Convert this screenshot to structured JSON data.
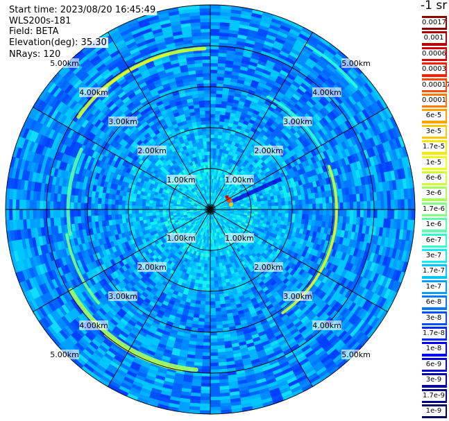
{
  "info": {
    "start_time": "Start time: 2023/08/20 16:45:49",
    "instrument": "WLS200s-181",
    "field": "Field: BETA",
    "elevation": "Elevation(deg): 35.30",
    "nrays": "NRays: 120"
  },
  "colorbar": {
    "unit_label": "-1 sr",
    "labels": [
      "0.0017",
      "0.001",
      "0.0006",
      "0.0003",
      "0.00017",
      "0.0001",
      "6e-5",
      "3e-5",
      "1.7e-5",
      "1e-5",
      "6e-6",
      "3e-6",
      "1.7e-6",
      "1e-6",
      "6e-7",
      "3e-7",
      "1.7e-7",
      "1e-7",
      "6e-8",
      "3e-8",
      "1.7e-8",
      "1e-8",
      "6e-9",
      "3e-9",
      "1.7e-9",
      "1e-9"
    ],
    "colors": [
      "#8a0000",
      "#b20000",
      "#d80000",
      "#ff1a00",
      "#ff4a00",
      "#ff7a00",
      "#ffa200",
      "#ffc800",
      "#ffe800",
      "#f0ff10",
      "#d0ff30",
      "#a8ff5a",
      "#80ff80",
      "#5affa8",
      "#30ffd0",
      "#10f0f0",
      "#00c8ff",
      "#00a0ff",
      "#0078ff",
      "#0050ff",
      "#0028ff",
      "#0000ff",
      "#0000d8",
      "#0000b0",
      "#00008a",
      "#000060"
    ]
  },
  "range_rings": {
    "labels": [
      "1.00km",
      "2.00km",
      "3.00km",
      "4.00km",
      "5.00km"
    ]
  },
  "chart_data": {
    "type": "heatmap",
    "title": "",
    "field": "BETA",
    "unit": "-1 sr",
    "rings_km": [
      1,
      2,
      3,
      4,
      5
    ],
    "color_scale": "log",
    "vmin": 1e-09,
    "vmax": 0.0017
  }
}
